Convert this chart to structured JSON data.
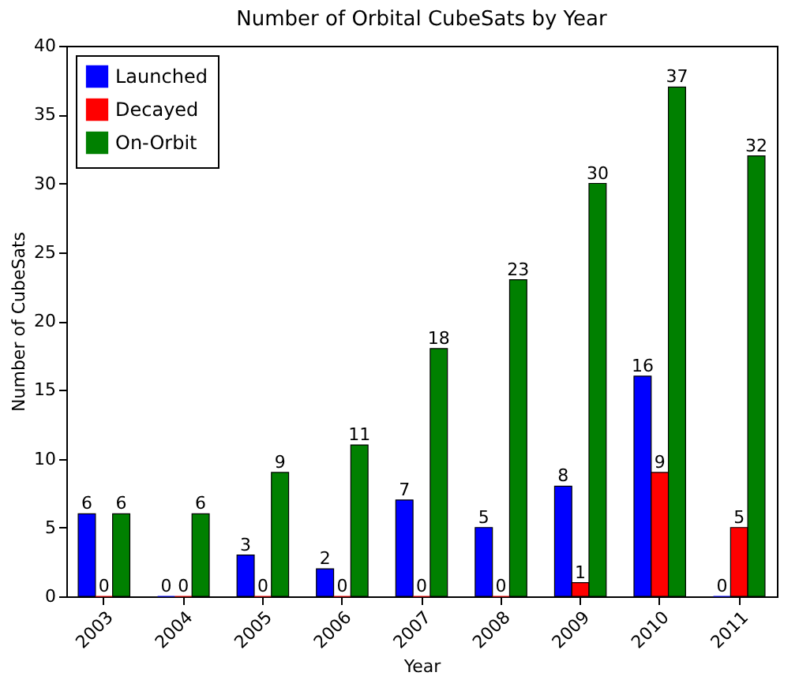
{
  "chart_data": {
    "type": "bar",
    "title": "Number of Orbital CubeSats by Year",
    "xlabel": "Year",
    "ylabel": "Number of CubeSats",
    "categories": [
      "2003",
      "2004",
      "2005",
      "2006",
      "2007",
      "2008",
      "2009",
      "2010",
      "2011"
    ],
    "series": [
      {
        "name": "Launched",
        "color": "#0000ff",
        "values": [
          6,
          0,
          3,
          2,
          7,
          5,
          8,
          16,
          0
        ]
      },
      {
        "name": "Decayed",
        "color": "#ff0000",
        "values": [
          0,
          0,
          0,
          0,
          0,
          0,
          1,
          9,
          5
        ]
      },
      {
        "name": "On-Orbit",
        "color": "#008000",
        "values": [
          6,
          6,
          9,
          11,
          18,
          23,
          30,
          37,
          32
        ]
      }
    ],
    "ylim": [
      0,
      40
    ],
    "yticks": [
      0,
      5,
      10,
      15,
      20,
      25,
      30,
      35,
      40
    ],
    "data_labels": true,
    "legend": "top left",
    "grid": false
  }
}
